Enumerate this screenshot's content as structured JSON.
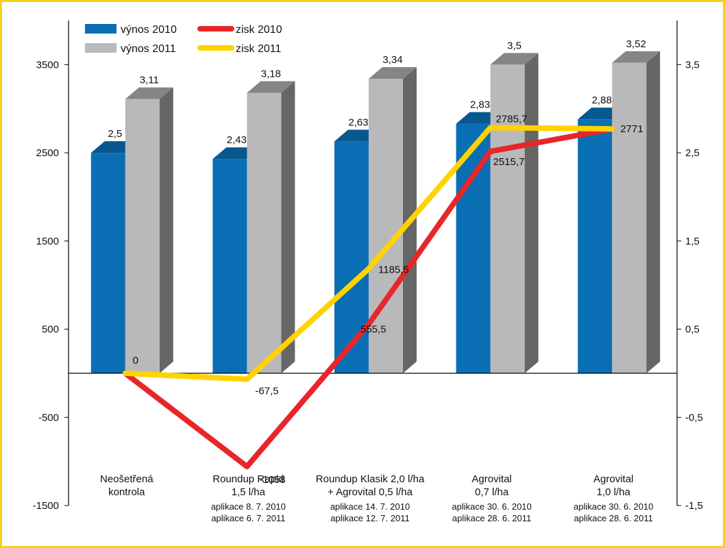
{
  "chart_data": {
    "type": "bar",
    "categories": [
      {
        "lines": [
          "Neošetřená",
          "kontrola"
        ],
        "notes": []
      },
      {
        "lines": [
          "Roundup Rapid",
          "1,5 l/ha"
        ],
        "notes": [
          "aplikace 8. 7. 2010",
          "aplikace 6. 7. 2011"
        ]
      },
      {
        "lines": [
          "Roundup Klasik 2,0 l/ha",
          "+ Agrovital 0,5 l/ha"
        ],
        "notes": [
          "aplikace 14. 7. 2010",
          "aplikace 12. 7. 2011"
        ]
      },
      {
        "lines": [
          "Agrovital",
          "0,7 l/ha"
        ],
        "notes": [
          "aplikace 30. 6. 2010",
          "aplikace 28. 6. 2011"
        ]
      },
      {
        "lines": [
          "Agrovital",
          "1,0 l/ha"
        ],
        "notes": [
          "aplikace 30. 6. 2010",
          "aplikace 28. 6. 2011"
        ]
      }
    ],
    "bar_series": [
      {
        "name": "výnos 2010",
        "color": "#0a6eb4",
        "values": [
          2.5,
          2.43,
          2.63,
          2.83,
          2.88
        ],
        "labels": [
          "2,5",
          "2,43",
          "2,63",
          "2,83",
          "2,88"
        ]
      },
      {
        "name": "výnos 2011",
        "color": "#b9b9bc",
        "values": [
          3.11,
          3.18,
          3.34,
          3.5,
          3.52
        ],
        "labels": [
          "3,11",
          "3,18",
          "3,34",
          "3,5",
          "3,52"
        ]
      }
    ],
    "line_series": [
      {
        "name": "zisk 2010",
        "color": "#e8262a",
        "values": [
          0,
          -1058,
          555.5,
          2515.7,
          2771
        ],
        "labels": [
          "0",
          "-1058",
          "555,5",
          "2515,7",
          "2771"
        ]
      },
      {
        "name": "zisk 2011",
        "color": "#ffd200",
        "values": [
          0,
          -67.5,
          1185.5,
          2785.7,
          2771
        ],
        "labels": [
          "",
          "-67,5",
          "1185,5",
          "2785,7",
          ""
        ]
      }
    ],
    "left_axis": {
      "ticks": [
        3500,
        2500,
        1500,
        500,
        -500,
        -1500
      ],
      "labels": [
        "3500",
        "2500",
        "1500",
        "500",
        "-500",
        "-1500"
      ],
      "range": [
        -1500,
        4000
      ]
    },
    "right_axis": {
      "ticks": [
        3.5,
        2.5,
        1.5,
        0.5,
        -0.5,
        -1.5
      ],
      "labels": [
        "3,5",
        "2,5",
        "1,5",
        "0,5",
        "-0,5",
        "-1,5"
      ],
      "range": [
        -1.5,
        4.0
      ]
    },
    "legend_position": "top-left",
    "grid": false
  }
}
